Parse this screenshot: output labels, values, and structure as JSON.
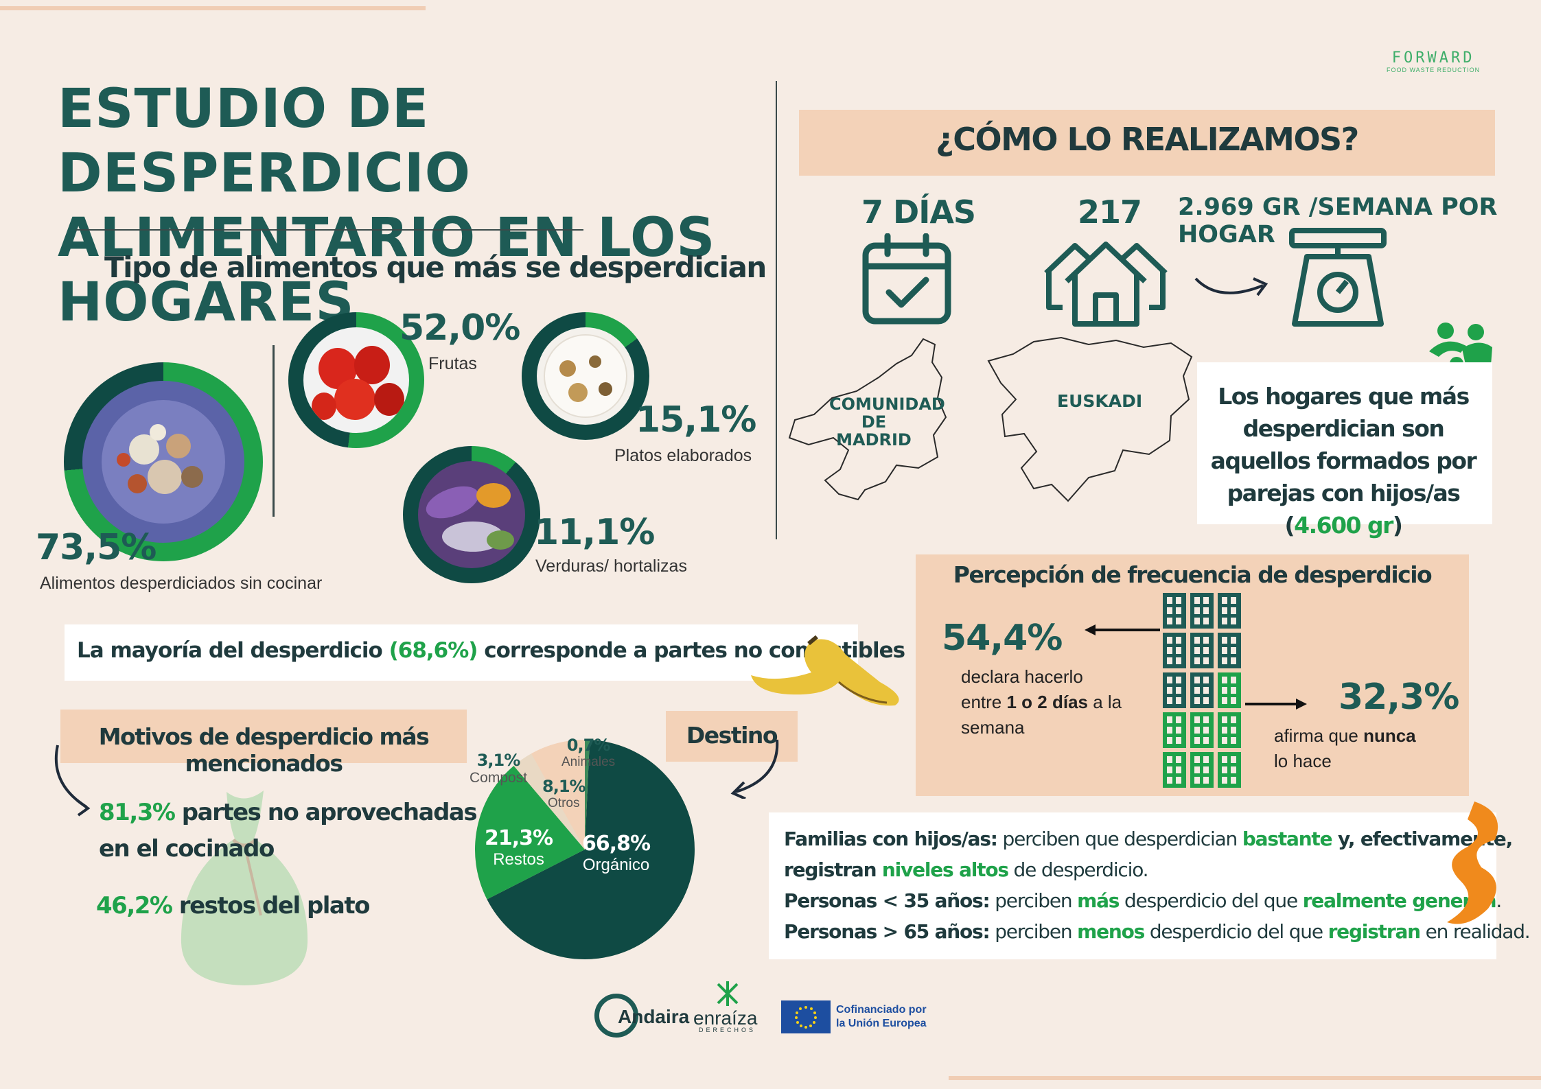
{
  "header": {
    "title_line1": "ESTUDIO DE DESPERDICIO",
    "title_line2": "ALIMENTARIO EN LOS HOGARES",
    "brand_name": "FORWARD",
    "brand_tagline": "FOOD WASTE REDUCTION"
  },
  "food_types": {
    "heading": "Tipo de alimentos que más se desperdician",
    "main": {
      "value": "73,5%",
      "label": "Alimentos desperdiciados sin cocinar"
    },
    "items": [
      {
        "value": "52,0%",
        "label": "Frutas"
      },
      {
        "value": "15,1%",
        "label": "Platos elaborados"
      },
      {
        "value": "11,1%",
        "label": "Verduras/ hortalizas"
      }
    ]
  },
  "method": {
    "heading": "¿CÓMO LO REALIZAMOS?",
    "days": "7 DÍAS",
    "households": "217",
    "weight": "2.969 GR /SEMANA POR  HOGAR",
    "region_1_line1": "COMUNIDAD",
    "region_1_line2": "DE",
    "region_1_line3": "MADRID",
    "region_2": "EUSKADI"
  },
  "families_box": {
    "text_before": "Los hogares que más desperdician son aquellos formados por parejas con hijos/as (",
    "highlight": "4.600 gr",
    "text_after": ")"
  },
  "inedible": {
    "before": "La mayoría del desperdicio ",
    "highlight": "(68,6%)",
    "after": " corresponde a partes no comestibles"
  },
  "frequency": {
    "heading": "Percepción de frecuencia de desperdicio",
    "left_value": "54,4%",
    "left_text_1": "declara hacerlo",
    "left_text_2a": "entre ",
    "left_text_2b": "1 o 2 días",
    "left_text_2c": " a la",
    "left_text_3": "semana",
    "right_value": "32,3%",
    "right_text_1a": "afirma que ",
    "right_text_1b": "nunca",
    "right_text_2": "lo hace"
  },
  "reasons": {
    "heading": "Motivos de desperdicio más mencionados",
    "item1_value": "81,3%",
    "item1_text_1": " partes no aprovechadas",
    "item1_text_2": "en el cocinado",
    "item2_value": "46,2%",
    "item2_text": " restos del plato"
  },
  "destino": {
    "heading": "Destino",
    "slices": [
      {
        "label": "Orgánico",
        "value": "66,8%"
      },
      {
        "label": "Restos",
        "value": "21,3%"
      },
      {
        "label": "Otros",
        "value": "8,1%"
      },
      {
        "label": "Compost",
        "value": "3,1%"
      },
      {
        "label": "Animales",
        "value": "0,7%"
      }
    ]
  },
  "perception": {
    "l1_a": "Familias con hijos/as:",
    "l1_b": " perciben que desperdician ",
    "l1_c": "bastante",
    "l1_d": " y, efectivamente,",
    "l2_a": "registran ",
    "l2_b": "niveles altos",
    "l2_c": " de desperdicio.",
    "l3_a": "Personas < 35 años:",
    "l3_b": " perciben ",
    "l3_c": "más",
    "l3_d": " desperdicio del que ",
    "l3_e": "realmente generan",
    "l3_f": ".",
    "l4_a": "Personas > 65 años:",
    "l4_b": " perciben ",
    "l4_c": "menos",
    "l4_d": " desperdicio del que ",
    "l4_e": "registran",
    "l4_f": " en realidad."
  },
  "footer": {
    "logo1": "Andaira",
    "logo2": "enraíza",
    "logo2_sub": "DERECHOS",
    "eu_line1": "Cofinanciado por",
    "eu_line2": "la Unión Europea"
  },
  "colors": {
    "background": "#f6ece4",
    "teal": "#1e5b55",
    "dark_green": "#0f4a44",
    "green": "#1fa24a",
    "peach": "#f3d2b8"
  }
}
